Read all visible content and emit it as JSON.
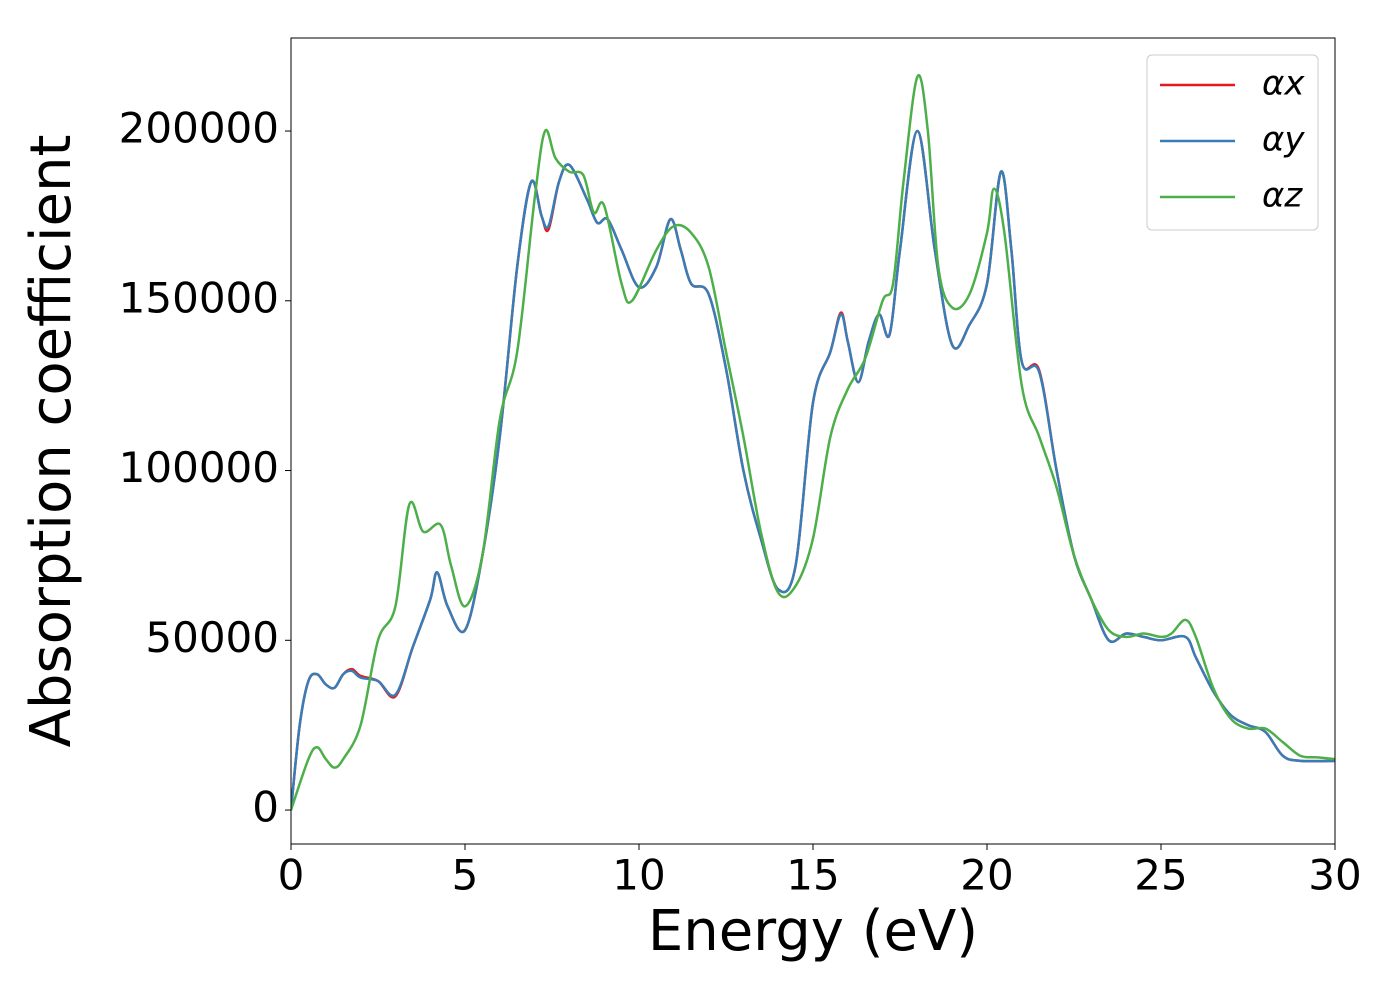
{
  "chart_data": {
    "type": "line",
    "xlabel": "Energy (eV)",
    "ylabel": "Absorption coefficient",
    "xlim": [
      0,
      30
    ],
    "xticks": [
      0,
      5,
      10,
      15,
      20,
      25,
      30
    ],
    "ylim": [
      -10000,
      227400
    ],
    "yticks": [
      0,
      50000,
      100000,
      150000,
      200000
    ],
    "grid": false,
    "legend": "upper right",
    "series": [
      {
        "name": "αx",
        "color": "#e41a1c",
        "x": [
          0,
          0.25,
          0.5,
          0.75,
          1,
          1.25,
          1.5,
          1.75,
          2,
          2.5,
          3,
          3.5,
          4,
          4.2,
          4.5,
          5,
          5.5,
          6,
          6.5,
          6.9,
          7.2,
          7.4,
          7.7,
          8,
          8.5,
          8.8,
          9.1,
          9.5,
          10,
          10.5,
          10.9,
          11.2,
          11.5,
          12,
          12.5,
          13,
          13.5,
          14,
          14.5,
          15,
          15.5,
          15.8,
          16,
          16.3,
          16.6,
          16.9,
          17.2,
          17.5,
          18,
          18.5,
          19,
          19.5,
          20,
          20.4,
          20.7,
          21,
          21.5,
          22,
          22.5,
          23,
          23.5,
          24,
          24.5,
          25,
          25.7,
          26,
          26.5,
          27,
          27.5,
          28,
          28.5,
          29,
          30
        ],
        "values": [
          0,
          25000,
          38000,
          40000,
          37000,
          36000,
          40000,
          41500,
          39500,
          38000,
          33500,
          48000,
          62000,
          70000,
          60000,
          53000,
          75000,
          110000,
          160000,
          185000,
          175000,
          171000,
          185000,
          190000,
          180000,
          173000,
          174000,
          165000,
          154000,
          160000,
          174000,
          165000,
          155000,
          152000,
          130000,
          100000,
          80000,
          65000,
          72000,
          120000,
          135000,
          146500,
          138000,
          126000,
          138000,
          146000,
          140000,
          165000,
          200000,
          165000,
          137000,
          143000,
          155000,
          188000,
          165000,
          132000,
          129500,
          100000,
          75000,
          62000,
          50000,
          52000,
          51000,
          50000,
          51000,
          45000,
          35000,
          28000,
          25000,
          23000,
          16000,
          14500,
          14500
        ]
      },
      {
        "name": "αy",
        "color": "#377eb8",
        "x": [
          0,
          0.25,
          0.5,
          0.75,
          1,
          1.25,
          1.5,
          1.75,
          2,
          2.5,
          3,
          3.5,
          4,
          4.2,
          4.5,
          5,
          5.5,
          6,
          6.5,
          6.9,
          7.2,
          7.4,
          7.7,
          8,
          8.5,
          8.8,
          9.1,
          9.5,
          10,
          10.5,
          10.9,
          11.2,
          11.5,
          12,
          12.5,
          13,
          13.5,
          14,
          14.5,
          15,
          15.5,
          15.8,
          16,
          16.3,
          16.6,
          16.9,
          17.2,
          17.5,
          18,
          18.5,
          19,
          19.5,
          20,
          20.4,
          20.7,
          21,
          21.5,
          22,
          22.5,
          23,
          23.5,
          24,
          24.5,
          25,
          25.7,
          26,
          26.5,
          27,
          27.5,
          28,
          28.5,
          29,
          30
        ],
        "values": [
          0,
          25000,
          38000,
          40000,
          37000,
          36000,
          40000,
          41000,
          39000,
          38000,
          34000,
          48000,
          62000,
          70000,
          60000,
          53000,
          75000,
          110000,
          160000,
          185000,
          175000,
          172000,
          185000,
          190000,
          180000,
          173000,
          174000,
          165000,
          154000,
          160000,
          174000,
          165000,
          155000,
          152000,
          130000,
          100000,
          80000,
          65000,
          72000,
          120000,
          135000,
          146000,
          138000,
          126000,
          138000,
          146000,
          140000,
          165000,
          200000,
          165000,
          137000,
          143000,
          155000,
          188000,
          165000,
          132000,
          129000,
          100000,
          75000,
          62000,
          50000,
          52000,
          51000,
          50000,
          51000,
          45000,
          35000,
          28000,
          25000,
          23000,
          16000,
          14500,
          14500
        ]
      },
      {
        "name": "αz",
        "color": "#4daf4a",
        "x": [
          0,
          0.5,
          0.75,
          1,
          1.25,
          1.5,
          2,
          2.5,
          3,
          3.4,
          3.8,
          4.3,
          4.6,
          5,
          5.5,
          6,
          6.5,
          7,
          7.3,
          7.6,
          8,
          8.4,
          8.7,
          9,
          9.5,
          9.8,
          10.5,
          11,
          11.5,
          12,
          12.5,
          13,
          13.5,
          14,
          14.5,
          15,
          15.5,
          16,
          16.5,
          17,
          17.3,
          17.6,
          18,
          18.3,
          18.6,
          19,
          19.5,
          20,
          20.2,
          20.5,
          21,
          21.5,
          22,
          22.5,
          23,
          23.5,
          24,
          24.5,
          25,
          25.3,
          25.7,
          26,
          26.5,
          27,
          27.5,
          28,
          28.5,
          29,
          29.5,
          30
        ],
        "values": [
          0,
          15000,
          18500,
          15000,
          12500,
          15000,
          25000,
          50000,
          60000,
          90000,
          82000,
          84000,
          72000,
          60000,
          75000,
          115000,
          135000,
          180000,
          200000,
          192000,
          188000,
          187000,
          176000,
          178000,
          155000,
          150000,
          165000,
          172000,
          170000,
          160000,
          135000,
          110000,
          82000,
          64000,
          66000,
          80000,
          110000,
          124000,
          133000,
          150000,
          155000,
          185000,
          216000,
          200000,
          160000,
          148000,
          152000,
          170000,
          183000,
          170000,
          125000,
          110000,
          95000,
          75000,
          62000,
          53000,
          51000,
          52000,
          51000,
          52000,
          56000,
          51000,
          36000,
          27000,
          24000,
          24000,
          20000,
          16000,
          15500,
          15000
        ]
      }
    ]
  }
}
